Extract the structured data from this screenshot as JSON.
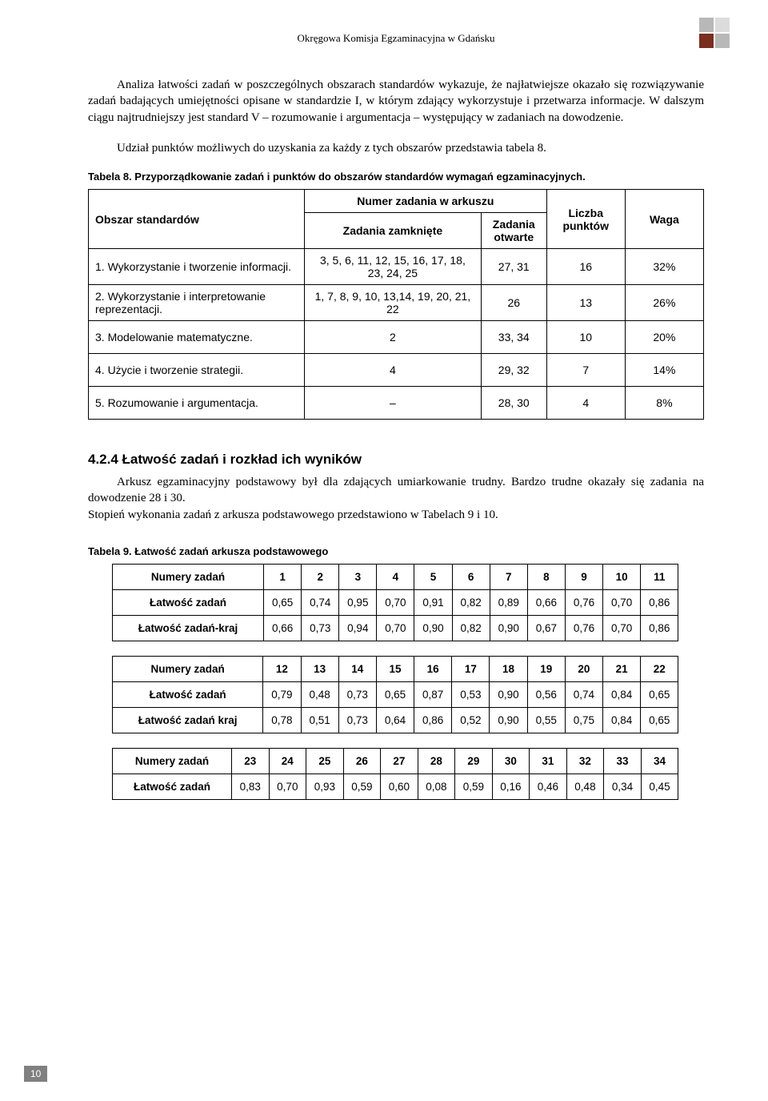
{
  "header": {
    "title": "Okręgowa Komisja Egzaminacyjna w Gdańsku"
  },
  "para1": "Analiza łatwości zadań w poszczególnych obszarach standardów wykazuje, że najłatwiejsze okazało się rozwiązywanie zadań badających umiejętności opisane w standardzie I, w którym zdający wykorzystuje i przetwarza informacje. W dalszym ciągu najtrudniejszy jest standard V – rozumowanie i argumentacja – występujący w zadaniach na dowodzenie.",
  "para2": "Udział punktów możliwych do uzyskania za każdy z tych obszarów przedstawia tabela 8.",
  "table8": {
    "caption": "Tabela 8. Przyporządkowanie zadań i punktów do obszarów standardów wymagań egzaminacyjnych.",
    "head": {
      "obszar": "Obszar standardów",
      "numer": "Numer zadania w arkuszu",
      "zamk": "Zadania zamknięte",
      "otw": "Zadania otwarte",
      "liczba": "Liczba punktów",
      "waga": "Waga"
    },
    "rows": [
      {
        "obszar": "1. Wykorzystanie i tworzenie informacji.",
        "zam": "3, 5, 6, 11, 12, 15, 16, 17, 18, 23, 24, 25",
        "otw": "27, 31",
        "pkt": "16",
        "waga": "32%"
      },
      {
        "obszar": "2. Wykorzystanie i interpretowanie reprezentacji.",
        "zam": "1, 7, 8, 9, 10, 13,14, 19, 20, 21, 22",
        "otw": "26",
        "pkt": "13",
        "waga": "26%"
      },
      {
        "obszar": "3. Modelowanie matematyczne.",
        "zam": "2",
        "otw": "33, 34",
        "pkt": "10",
        "waga": "20%"
      },
      {
        "obszar": "4. Użycie i tworzenie strategii.",
        "zam": "4",
        "otw": "29, 32",
        "pkt": "7",
        "waga": "14%"
      },
      {
        "obszar": "5. Rozumowanie i argumentacja.",
        "zam": "–",
        "otw": "28, 30",
        "pkt": "4",
        "waga": "8%"
      }
    ]
  },
  "section": {
    "heading": "4.2.4  Łatwość zadań i rozkład ich wyników",
    "p1": "Arkusz egzaminacyjny podstawowy był dla zdających umiarkowanie trudny. Bardzo trudne okazały się zadania na dowodzenie 28 i 30.",
    "p2": "Stopień wykonania zadań z arkusza podstawowego przedstawiono w Tabelach 9 i 10."
  },
  "table9": {
    "caption": "Tabela 9.  Łatwość zadań arkusza podstawowego",
    "rowlabels": {
      "num": "Numery zadań",
      "lat": "Łatwość zadań",
      "latkraj1": "Łatwość zadań-kraj",
      "latkraj2": "Łatwość zadań kraj"
    },
    "block1": {
      "nums": [
        "1",
        "2",
        "3",
        "4",
        "5",
        "6",
        "7",
        "8",
        "9",
        "10",
        "11"
      ],
      "lat": [
        "0,65",
        "0,74",
        "0,95",
        "0,70",
        "0,91",
        "0,82",
        "0,89",
        "0,66",
        "0,76",
        "0,70",
        "0,86"
      ],
      "kraj": [
        "0,66",
        "0,73",
        "0,94",
        "0,70",
        "0,90",
        "0,82",
        "0,90",
        "0,67",
        "0,76",
        "0,70",
        "0,86"
      ]
    },
    "block2": {
      "nums": [
        "12",
        "13",
        "14",
        "15",
        "16",
        "17",
        "18",
        "19",
        "20",
        "21",
        "22"
      ],
      "lat": [
        "0,79",
        "0,48",
        "0,73",
        "0,65",
        "0,87",
        "0,53",
        "0,90",
        "0,56",
        "0,74",
        "0,84",
        "0,65"
      ],
      "kraj": [
        "0,78",
        "0,51",
        "0,73",
        "0,64",
        "0,86",
        "0,52",
        "0,90",
        "0,55",
        "0,75",
        "0,84",
        "0,65"
      ]
    },
    "block3": {
      "nums": [
        "23",
        "24",
        "25",
        "26",
        "27",
        "28",
        "29",
        "30",
        "31",
        "32",
        "33",
        "34"
      ],
      "lat": [
        "0,83",
        "0,70",
        "0,93",
        "0,59",
        "0,60",
        "0,08",
        "0,59",
        "0,16",
        "0,46",
        "0,48",
        "0,34",
        "0,45"
      ]
    }
  },
  "pageNumber": "10"
}
